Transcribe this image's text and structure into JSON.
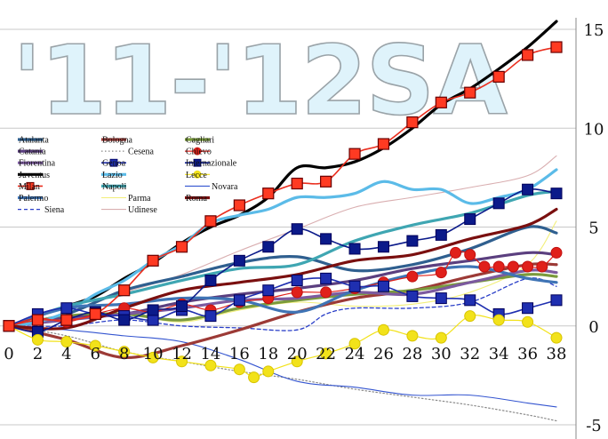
{
  "chart_data": {
    "type": "line",
    "title": "'11-'12SA",
    "xlabel": "",
    "ylabel": "",
    "xlim": [
      0,
      38
    ],
    "ylim": [
      -5,
      15
    ],
    "x_ticks": [
      "0",
      "2",
      "4",
      "6",
      "8",
      "10",
      "12",
      "14",
      "16",
      "18",
      "20",
      "22",
      "24",
      "26",
      "28",
      "30",
      "32",
      "34",
      "36",
      "38"
    ],
    "y_ticks": [
      "15",
      "10",
      "5",
      "0",
      "-5"
    ],
    "grid": "horizontal",
    "legend_position": "left",
    "series": [
      {
        "name": "Atalanta",
        "color": "#2f5f8f",
        "style": "thick",
        "x": [
          0,
          4,
          8,
          12,
          16,
          20,
          24,
          28,
          32,
          36,
          38
        ],
        "values": [
          0,
          0.6,
          1.8,
          2.5,
          3.2,
          3.5,
          2.8,
          3.1,
          3.9,
          5.0,
          4.7
        ]
      },
      {
        "name": "Bologna",
        "color": "#9c3a36",
        "style": "thick",
        "x": [
          0,
          4,
          8,
          12,
          16,
          20,
          24,
          28,
          32,
          36,
          38
        ],
        "values": [
          0,
          -0.7,
          -1.6,
          -1.0,
          -0.2,
          0.7,
          1.4,
          1.8,
          2.5,
          3.1,
          3.1
        ]
      },
      {
        "name": "Cagliari",
        "color": "#7a9a3c",
        "style": "thick",
        "x": [
          0,
          4,
          8,
          12,
          16,
          20,
          24,
          28,
          32,
          36,
          38
        ],
        "values": [
          0,
          0.5,
          0.6,
          0.3,
          0.9,
          1.3,
          1.6,
          1.8,
          2.2,
          2.6,
          2.5
        ]
      },
      {
        "name": "Catania",
        "color": "#5b3f7f",
        "style": "thick",
        "x": [
          0,
          4,
          8,
          12,
          16,
          20,
          24,
          28,
          32,
          36,
          38
        ],
        "values": [
          0,
          0.4,
          0.6,
          1.2,
          1.6,
          1.9,
          2.3,
          2.9,
          3.3,
          3.7,
          3.6
        ]
      },
      {
        "name": "Cesena",
        "color": "#8a8a8a",
        "style": "dotted",
        "x": [
          0,
          4,
          8,
          12,
          16,
          20,
          24,
          28,
          32,
          36,
          38
        ],
        "values": [
          0,
          -0.5,
          -1.3,
          -1.8,
          -2.3,
          -2.7,
          -3.2,
          -3.6,
          -4.0,
          -4.5,
          -4.8
        ]
      },
      {
        "name": "Chievo",
        "color": "#e0201a",
        "style": "marker-circle",
        "x": [
          0,
          2,
          4,
          6,
          8,
          10,
          12,
          14,
          16,
          18,
          20,
          22,
          24,
          26,
          28,
          30,
          31,
          32,
          33,
          34,
          35,
          36,
          37,
          38
        ],
        "values": [
          0,
          0.4,
          0.2,
          0.6,
          0.9,
          0.7,
          1.1,
          0.8,
          1.2,
          1.4,
          1.7,
          1.7,
          1.9,
          2.2,
          2.5,
          2.7,
          3.7,
          3.6,
          3.0,
          3.0,
          3.0,
          3.0,
          3.0,
          3.7
        ]
      },
      {
        "name": "Fiorentina",
        "color": "#7c5a9f",
        "style": "thick",
        "x": [
          0,
          4,
          8,
          12,
          16,
          20,
          24,
          28,
          32,
          36,
          38
        ],
        "values": [
          0,
          0.3,
          0.6,
          0.9,
          1.3,
          1.4,
          1.7,
          1.6,
          2.2,
          2.8,
          2.7
        ]
      },
      {
        "name": "Genoa",
        "color": "#1f2fb0",
        "style": "marker-square",
        "x": [
          0,
          2,
          4,
          6,
          8,
          10,
          12,
          14,
          16,
          18,
          20,
          22,
          24,
          26,
          28,
          30,
          32,
          34,
          36,
          38
        ],
        "values": [
          0,
          0.6,
          0.9,
          0.6,
          0.5,
          0.3,
          0.8,
          0.5,
          1.3,
          1.8,
          2.3,
          2.4,
          2.0,
          2.0,
          1.5,
          1.4,
          1.3,
          0.6,
          0.9,
          1.3
        ]
      },
      {
        "name": "Internazionale",
        "color": "#0b1a8a",
        "style": "marker-square",
        "x": [
          0,
          2,
          4,
          6,
          8,
          10,
          12,
          14,
          16,
          18,
          20,
          22,
          24,
          26,
          28,
          30,
          32,
          34,
          36,
          38
        ],
        "values": [
          0,
          -0.3,
          0.3,
          0.7,
          0.3,
          0.8,
          1.0,
          2.3,
          3.3,
          4.0,
          4.9,
          4.4,
          3.9,
          4.0,
          4.3,
          4.6,
          5.4,
          6.2,
          6.9,
          6.7
        ]
      },
      {
        "name": "Juventus",
        "color": "#000000",
        "style": "thick",
        "x": [
          0,
          2,
          4,
          6,
          8,
          10,
          12,
          14,
          16,
          18,
          20,
          22,
          24,
          26,
          28,
          30,
          32,
          34,
          36,
          38
        ],
        "values": [
          0,
          0.5,
          1.0,
          1.5,
          2.4,
          3.2,
          4.2,
          5.0,
          5.6,
          6.5,
          8.0,
          8.0,
          8.3,
          9.0,
          10.0,
          11.2,
          12.0,
          13.0,
          14.1,
          15.4
        ]
      },
      {
        "name": "Lazio",
        "color": "#5bbbe8",
        "style": "thick",
        "x": [
          0,
          2,
          4,
          6,
          8,
          10,
          12,
          14,
          16,
          18,
          20,
          22,
          24,
          26,
          28,
          30,
          32,
          34,
          36,
          38
        ],
        "values": [
          0,
          0.2,
          0.7,
          1.6,
          2.3,
          3.3,
          4.1,
          5.2,
          5.6,
          5.9,
          6.5,
          6.5,
          6.7,
          7.3,
          6.9,
          6.9,
          6.2,
          6.5,
          6.9,
          7.9
        ]
      },
      {
        "name": "Lecce",
        "color": "#f2e21a",
        "style": "marker-circle",
        "x": [
          0,
          2,
          4,
          6,
          8,
          10,
          12,
          14,
          16,
          17,
          18,
          20,
          22,
          24,
          26,
          28,
          30,
          32,
          34,
          36,
          38
        ],
        "values": [
          0,
          -0.7,
          -0.8,
          -1.0,
          -1.3,
          -1.6,
          -1.8,
          -2.0,
          -2.2,
          -2.6,
          -2.3,
          -1.8,
          -1.4,
          -0.9,
          -0.2,
          -0.5,
          -0.6,
          0.5,
          0.3,
          0.2,
          -0.6
        ]
      },
      {
        "name": "Milan",
        "color": "#ea2f1f",
        "style": "marker-square-red",
        "x": [
          0,
          2,
          4,
          6,
          8,
          10,
          12,
          14,
          16,
          18,
          20,
          22,
          24,
          26,
          28,
          30,
          32,
          34,
          36,
          38
        ],
        "values": [
          0,
          0.3,
          0.3,
          0.6,
          1.8,
          3.3,
          4.0,
          5.3,
          6.1,
          6.7,
          7.2,
          7.3,
          8.7,
          9.2,
          10.3,
          11.3,
          11.8,
          12.6,
          13.7,
          14.1
        ]
      },
      {
        "name": "Napoli",
        "color": "#3fa6b2",
        "style": "thick",
        "x": [
          0,
          4,
          8,
          12,
          16,
          20,
          24,
          28,
          32,
          36,
          38
        ],
        "values": [
          0,
          1.0,
          1.6,
          2.3,
          2.9,
          3.1,
          4.3,
          5.1,
          5.7,
          6.6,
          6.8
        ]
      },
      {
        "name": "Novara",
        "color": "#3455d0",
        "style": "thin",
        "x": [
          0,
          4,
          8,
          12,
          16,
          20,
          24,
          28,
          32,
          36,
          38
        ],
        "values": [
          0,
          -0.2,
          -0.5,
          -0.8,
          -1.7,
          -2.8,
          -3.1,
          -3.5,
          -3.5,
          -3.9,
          -4.1
        ]
      },
      {
        "name": "Palermo",
        "color": "#3f74b5",
        "style": "thick",
        "x": [
          0,
          4,
          8,
          12,
          16,
          20,
          24,
          28,
          32,
          36,
          38
        ],
        "values": [
          0,
          0.9,
          1.1,
          1.4,
          1.3,
          0.7,
          1.8,
          2.6,
          3.0,
          2.4,
          2.2
        ]
      },
      {
        "name": "Parma",
        "color": "#f2ef7a",
        "style": "thin",
        "x": [
          0,
          4,
          8,
          12,
          16,
          20,
          24,
          28,
          32,
          36,
          38
        ],
        "values": [
          0,
          0.3,
          0.6,
          0.2,
          0.8,
          1.2,
          1.0,
          1.1,
          1.7,
          3.1,
          5.3
        ]
      },
      {
        "name": "Roma",
        "color": "#7a0f0f",
        "style": "thick",
        "x": [
          0,
          4,
          8,
          12,
          16,
          20,
          24,
          28,
          32,
          36,
          38
        ],
        "values": [
          0,
          -0.1,
          0.9,
          1.8,
          2.2,
          2.6,
          3.3,
          3.6,
          4.4,
          5.1,
          5.9
        ]
      },
      {
        "name": "Siena",
        "color": "#2a3fc8",
        "style": "dashed",
        "x": [
          0,
          4,
          8,
          12,
          16,
          20,
          22,
          24,
          28,
          32,
          36,
          38
        ],
        "values": [
          0,
          0.0,
          0.3,
          0.0,
          -0.1,
          -0.2,
          0.6,
          0.9,
          0.9,
          1.2,
          2.4,
          2.0
        ]
      },
      {
        "name": "Udinese",
        "color": "#d9aeb0",
        "style": "thin",
        "x": [
          0,
          4,
          8,
          12,
          16,
          20,
          24,
          28,
          32,
          36,
          38
        ],
        "values": [
          0,
          1.0,
          1.7,
          2.6,
          3.8,
          4.9,
          6.0,
          6.5,
          7.0,
          7.6,
          8.6
        ]
      }
    ]
  }
}
